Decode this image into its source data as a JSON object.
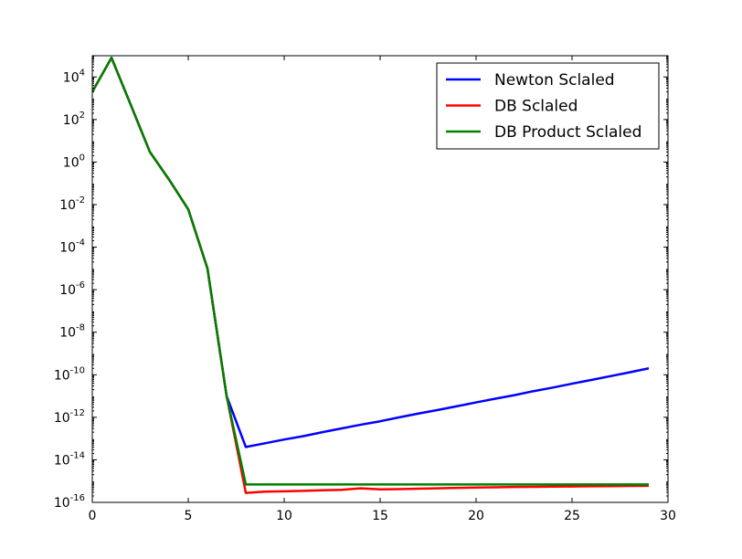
{
  "chart_data": {
    "type": "line",
    "title": "",
    "xlabel": "",
    "ylabel": "",
    "xlim": [
      0,
      30
    ],
    "ylim": [
      1e-16,
      100000.0
    ],
    "yscale": "log",
    "x_ticks": [
      0,
      5,
      10,
      15,
      20,
      25,
      30
    ],
    "y_ticks": [
      {
        "base": "10",
        "exp": "-16",
        "value": 1e-16
      },
      {
        "base": "10",
        "exp": "-14",
        "value": 1e-14
      },
      {
        "base": "10",
        "exp": "-12",
        "value": 1e-12
      },
      {
        "base": "10",
        "exp": "-10",
        "value": 1e-10
      },
      {
        "base": "10",
        "exp": "-8",
        "value": 1e-08
      },
      {
        "base": "10",
        "exp": "-6",
        "value": 1e-06
      },
      {
        "base": "10",
        "exp": "-4",
        "value": 0.0001
      },
      {
        "base": "10",
        "exp": "-2",
        "value": 0.01
      },
      {
        "base": "10",
        "exp": "0",
        "value": 1
      },
      {
        "base": "10",
        "exp": "2",
        "value": 100
      },
      {
        "base": "10",
        "exp": "4",
        "value": 10000
      }
    ],
    "grid": false,
    "legend_position": "top-right",
    "x": [
      0,
      1,
      2,
      3,
      4,
      5,
      6,
      7,
      8,
      9,
      10,
      11,
      12,
      13,
      14,
      15,
      16,
      17,
      18,
      19,
      20,
      21,
      22,
      23,
      24,
      25,
      26,
      27,
      28,
      29
    ],
    "series": [
      {
        "name": "Newton Sclaled",
        "color": "#0000ff",
        "values": [
          2000,
          80000,
          500,
          3,
          0.15,
          0.006,
          1e-05,
          1e-11,
          4e-14,
          6e-14,
          9e-14,
          1.3e-13,
          2e-13,
          3e-13,
          4.5e-13,
          6.5e-13,
          1e-12,
          1.5e-12,
          2.2e-12,
          3.3e-12,
          5e-12,
          7.5e-12,
          1.1e-11,
          1.7e-11,
          2.5e-11,
          3.8e-11,
          5.7e-11,
          8.6e-11,
          1.3e-10,
          2e-10
        ]
      },
      {
        "name": "DB Sclaled",
        "color": "#ff0000",
        "values": [
          2000,
          80000,
          500,
          3,
          0.15,
          0.006,
          1e-05,
          1e-11,
          2.8e-16,
          3.2e-16,
          3.3e-16,
          3.5e-16,
          3.7e-16,
          3.9e-16,
          4.6e-16,
          4.1e-16,
          4.2e-16,
          4.4e-16,
          4.6e-16,
          4.8e-16,
          5e-16,
          5.1e-16,
          5.3e-16,
          5.4e-16,
          5.5e-16,
          5.6e-16,
          5.7e-16,
          5.8e-16,
          5.9e-16,
          6e-16
        ]
      },
      {
        "name": "DB Product Sclaled",
        "color": "#008000",
        "values": [
          2000,
          80000,
          500,
          3,
          0.15,
          0.006,
          1e-05,
          1e-11,
          7e-16,
          7e-16,
          7e-16,
          7e-16,
          7e-16,
          7e-16,
          7e-16,
          7e-16,
          7e-16,
          7e-16,
          7e-16,
          7e-16,
          7e-16,
          7e-16,
          7e-16,
          7e-16,
          7e-16,
          7e-16,
          7e-16,
          7e-16,
          7e-16,
          7e-16
        ]
      }
    ]
  }
}
